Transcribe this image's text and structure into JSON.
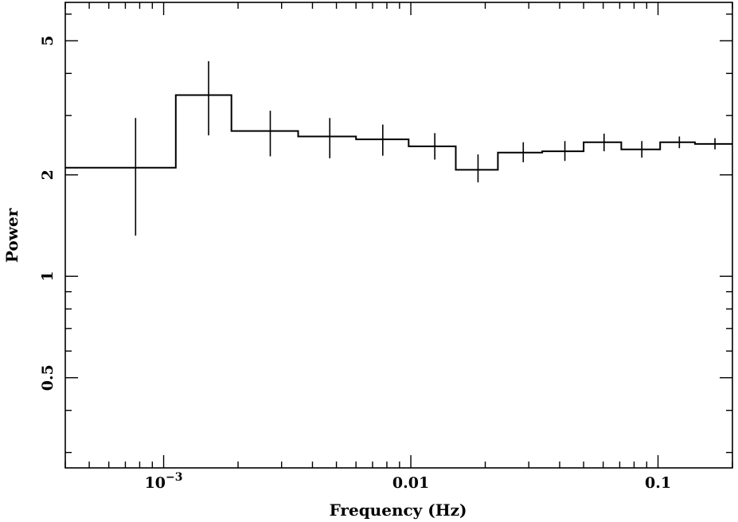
{
  "chart_data": {
    "type": "line",
    "style": "step-histogram-with-error-bars",
    "title": "",
    "xlabel": "Frequency (Hz)",
    "ylabel": "Power",
    "xscale": "log",
    "yscale": "log",
    "xlim": [
      0.0004,
      0.2
    ],
    "ylim": [
      0.27,
      6.5
    ],
    "x_ticks": [
      {
        "value": 0.001,
        "label": "10",
        "exponent": "−3"
      },
      {
        "value": 0.01,
        "label": "0.01",
        "exponent": ""
      },
      {
        "value": 0.1,
        "label": "0.1",
        "exponent": ""
      }
    ],
    "y_ticks": [
      {
        "value": 0.5,
        "label": "0.5"
      },
      {
        "value": 1,
        "label": "1"
      },
      {
        "value": 2,
        "label": "2"
      },
      {
        "value": 5,
        "label": "5"
      }
    ],
    "grid": false,
    "legend": "none",
    "color": "#000000",
    "series": [
      {
        "points": [
          {
            "x_lo": 0.0004,
            "x_hi": 0.00112,
            "x": 0.00077,
            "y": 2.1,
            "y_lo": 1.32,
            "y_hi": 2.95
          },
          {
            "x_lo": 0.00112,
            "x_hi": 0.00188,
            "x": 0.00152,
            "y": 3.45,
            "y_lo": 2.62,
            "y_hi": 4.35
          },
          {
            "x_lo": 0.00188,
            "x_hi": 0.0035,
            "x": 0.0027,
            "y": 2.7,
            "y_lo": 2.27,
            "y_hi": 3.1
          },
          {
            "x_lo": 0.0035,
            "x_hi": 0.006,
            "x": 0.0047,
            "y": 2.6,
            "y_lo": 2.24,
            "y_hi": 2.95
          },
          {
            "x_lo": 0.006,
            "x_hi": 0.0098,
            "x": 0.0077,
            "y": 2.55,
            "y_lo": 2.28,
            "y_hi": 2.82
          },
          {
            "x_lo": 0.0098,
            "x_hi": 0.0152,
            "x": 0.0125,
            "y": 2.43,
            "y_lo": 2.22,
            "y_hi": 2.66
          },
          {
            "x_lo": 0.0152,
            "x_hi": 0.0225,
            "x": 0.0187,
            "y": 2.07,
            "y_lo": 1.9,
            "y_hi": 2.3
          },
          {
            "x_lo": 0.0225,
            "x_hi": 0.034,
            "x": 0.0285,
            "y": 2.33,
            "y_lo": 2.18,
            "y_hi": 2.5
          },
          {
            "x_lo": 0.034,
            "x_hi": 0.05,
            "x": 0.042,
            "y": 2.35,
            "y_lo": 2.2,
            "y_hi": 2.52
          },
          {
            "x_lo": 0.05,
            "x_hi": 0.071,
            "x": 0.0605,
            "y": 2.5,
            "y_lo": 2.35,
            "y_hi": 2.65
          },
          {
            "x_lo": 0.071,
            "x_hi": 0.102,
            "x": 0.086,
            "y": 2.38,
            "y_lo": 2.25,
            "y_hi": 2.52
          },
          {
            "x_lo": 0.102,
            "x_hi": 0.141,
            "x": 0.122,
            "y": 2.5,
            "y_lo": 2.4,
            "y_hi": 2.6
          },
          {
            "x_lo": 0.141,
            "x_hi": 0.2,
            "x": 0.17,
            "y": 2.47,
            "y_lo": 2.38,
            "y_hi": 2.57
          }
        ]
      }
    ]
  }
}
